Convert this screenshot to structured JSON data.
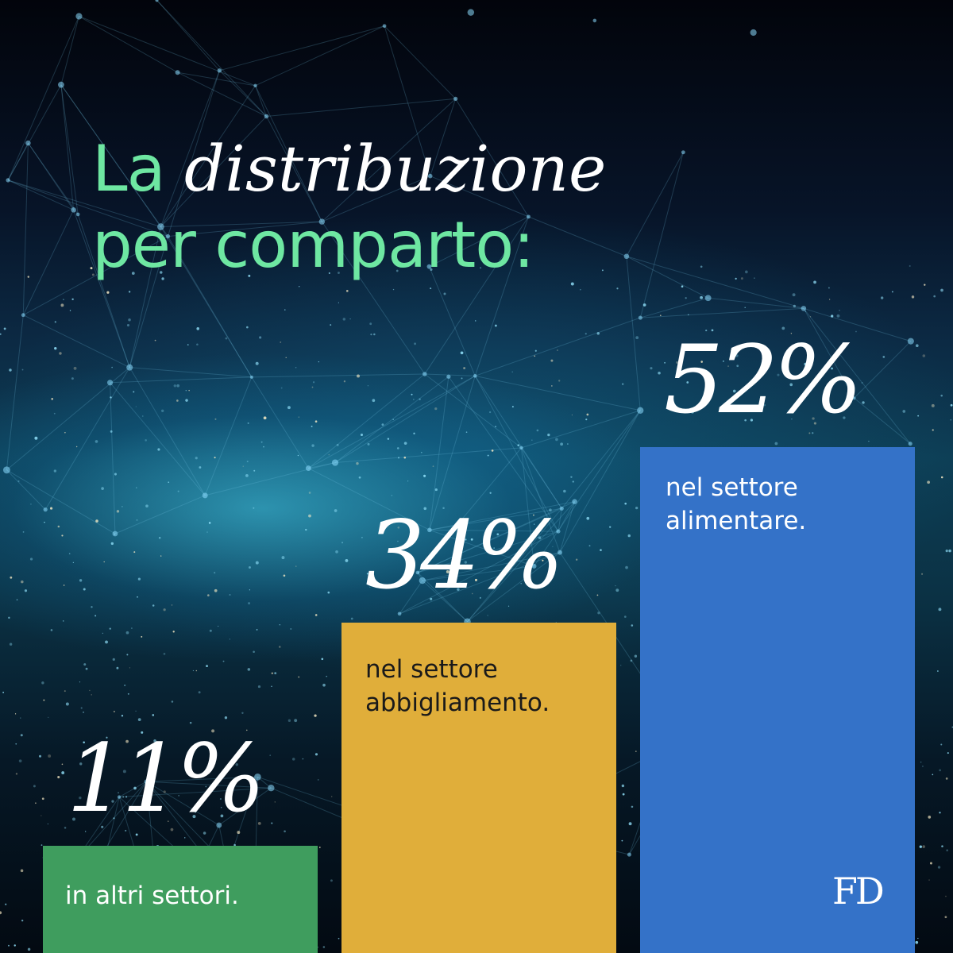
{
  "title": {
    "plain": "La",
    "emphasis": "distribuzione",
    "line2": "per comparto:"
  },
  "chart_data": {
    "type": "bar",
    "categories": [
      "in altri settori.",
      "nel settore abbigliamento.",
      "nel settore alimentare."
    ],
    "values": [
      11,
      34,
      52
    ],
    "labels": [
      "11%",
      "34%",
      "52%"
    ],
    "descriptions": [
      [
        "in altri settori."
      ],
      [
        "nel settore",
        "abbigliamento."
      ],
      [
        "nel settore",
        "alimentare."
      ]
    ],
    "colors": [
      "#3f9d5e",
      "#e0ae3a",
      "#3472c8"
    ],
    "title": "La distribuzione per comparto:",
    "xlabel": "",
    "ylabel": "",
    "ylim": [
      0,
      100
    ],
    "grid": false
  },
  "logo": "FD"
}
